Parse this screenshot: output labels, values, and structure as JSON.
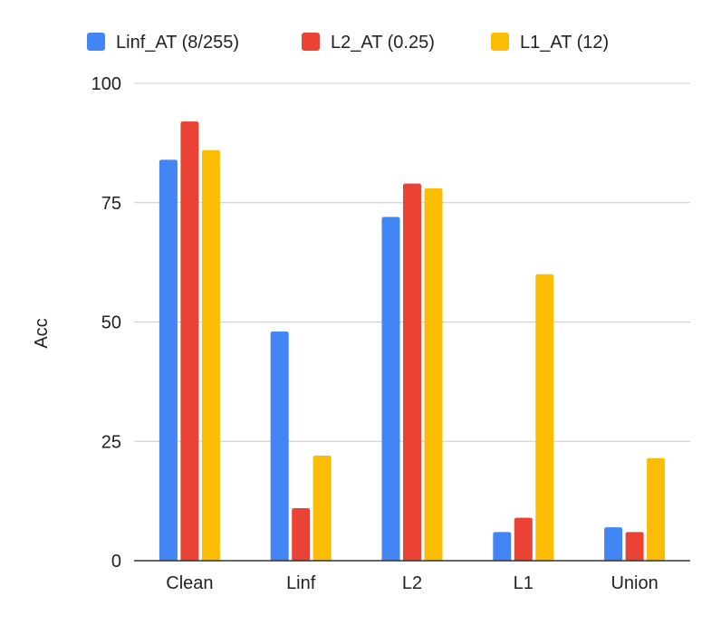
{
  "chart_data": {
    "type": "bar",
    "title": "",
    "xlabel": "",
    "ylabel": "Acc",
    "ylim": [
      0,
      100
    ],
    "yticks": [
      0,
      25,
      50,
      75,
      100
    ],
    "grid": true,
    "legend_position": "top",
    "categories": [
      "Clean",
      "Linf",
      "L2",
      "L1",
      "Union"
    ],
    "series": [
      {
        "name": "Linf_AT (8/255)",
        "color": "#4285F4",
        "values": [
          84,
          48,
          72,
          6,
          7
        ]
      },
      {
        "name": "L2_AT (0.25)",
        "color": "#EA4335",
        "values": [
          92,
          11,
          79,
          9,
          6
        ]
      },
      {
        "name": "L1_AT (12)",
        "color": "#FBBC04",
        "values": [
          86,
          22,
          78,
          60,
          21.5
        ]
      }
    ]
  }
}
